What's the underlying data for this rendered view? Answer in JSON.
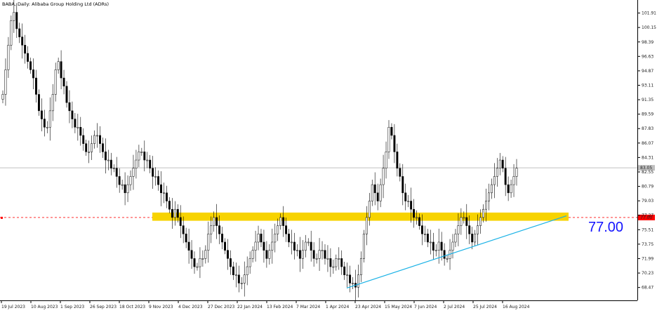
{
  "chart_data": {
    "type": "candlestick",
    "title": "BABA, Daily:  Alibaba Group Holding Ltd (ADRs)",
    "ylim": [
      66.9,
      103.5
    ],
    "yticks": [
      "101.91",
      "100.15",
      "98.39",
      "96.63",
      "94.87",
      "93.11",
      "91.35",
      "89.59",
      "87.83",
      "86.07",
      "84.31",
      "82.55",
      "80.79",
      "79.03",
      "77.27",
      "75.51",
      "73.75",
      "71.99",
      "70.23",
      "68.47"
    ],
    "xlabels": [
      "19 Jul 2023",
      "10 Aug 2023",
      "1 Sep 2023",
      "26 Sep 2023",
      "18 Oct 2023",
      "9 Nov 2023",
      "4 Dec 2023",
      "27 Dec 2023",
      "22 Jan 2024",
      "13 Feb 2024",
      "7 Mar 2024",
      "1 Apr 2024",
      "23 Apr 2024",
      "15 May 2024",
      "7 Jun 2024",
      "2 Jul 2024",
      "25 Jul 2024",
      "16 Aug 2024"
    ],
    "current_price": "83.05",
    "level_price": "77.00",
    "level_annotation": "77.00",
    "support_band": [
      76.6,
      77.6
    ],
    "trendline": {
      "from": {
        "date": "29 Mar 2024",
        "price": 68.4
      },
      "to": {
        "date": "19 Sep 2024",
        "price": 77.2
      }
    },
    "closes": [
      92,
      95,
      98,
      101,
      102,
      100,
      99,
      98,
      97,
      96,
      95,
      94,
      92,
      90,
      89,
      88,
      88,
      90,
      92,
      95,
      96,
      94,
      93,
      91,
      90,
      89,
      88,
      88,
      87,
      86,
      85,
      85,
      86,
      87,
      87,
      86,
      85,
      84,
      84,
      83,
      83,
      82,
      81,
      81,
      80,
      81,
      82,
      83,
      84,
      85,
      85,
      84,
      84,
      83,
      82,
      82,
      81,
      80,
      80,
      79,
      78,
      77,
      78,
      77,
      76,
      75,
      74,
      73,
      72,
      71,
      71,
      72,
      72,
      73,
      75,
      76,
      77,
      76,
      75,
      74,
      73,
      72,
      71,
      70,
      70,
      69,
      69,
      70,
      71,
      72,
      73,
      74,
      75,
      74,
      73,
      72,
      73,
      74,
      75,
      76,
      77,
      76,
      75,
      74,
      74,
      73,
      73,
      72,
      73,
      74,
      74,
      73,
      72,
      72,
      73,
      73,
      72,
      72,
      71,
      71,
      72,
      72,
      71,
      70,
      70,
      69,
      69,
      68.5,
      70,
      72,
      75,
      77,
      79,
      81,
      80,
      79,
      81,
      83,
      85,
      88,
      87,
      85,
      83,
      82,
      80,
      79,
      79,
      78,
      77,
      77,
      76,
      75,
      75,
      74,
      74,
      73,
      73,
      74,
      73,
      72,
      72,
      73,
      74,
      75,
      76,
      77,
      77,
      76,
      75,
      74,
      75,
      76,
      77,
      78,
      79,
      80,
      81,
      82,
      83,
      84,
      83,
      81,
      80,
      81,
      82,
      83
    ]
  }
}
